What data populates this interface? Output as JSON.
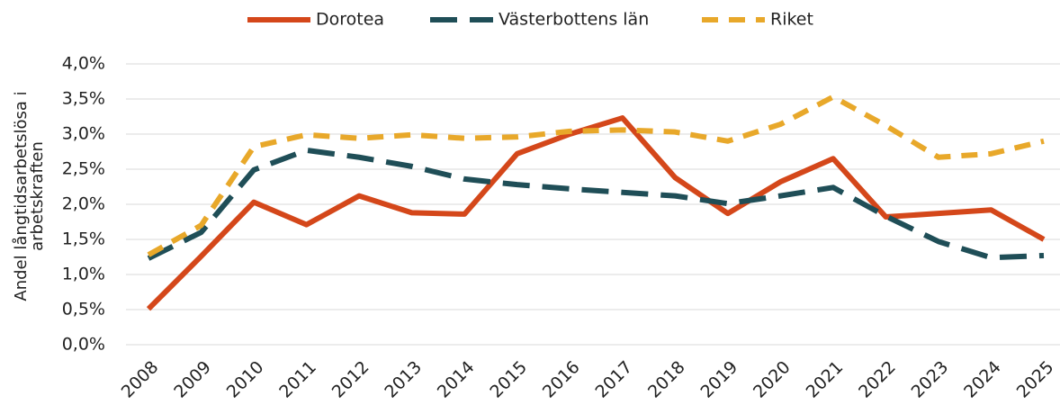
{
  "chart_data": {
    "type": "line",
    "y_label": "Andel långtidsarbetslösa i arbetskraften",
    "categories": [
      "2008",
      "2009",
      "2010",
      "2011",
      "2012",
      "2013",
      "2014",
      "2015",
      "2016",
      "2017",
      "2018",
      "2019",
      "2020",
      "2021",
      "2022",
      "2023",
      "2024",
      "2025"
    ],
    "series": [
      {
        "name": "Dorotea",
        "color": "#d4471a",
        "dash": "solid",
        "values": [
          0.51,
          1.26,
          2.03,
          1.71,
          2.12,
          1.88,
          1.86,
          2.72,
          3.0,
          3.23,
          2.38,
          1.87,
          2.32,
          2.65,
          1.82,
          1.87,
          1.92,
          1.5
        ]
      },
      {
        "name": "Västerbottens län",
        "color": "#1f4e57",
        "dash": "long",
        "values": [
          1.23,
          1.6,
          2.49,
          2.77,
          2.67,
          2.54,
          2.36,
          2.28,
          2.22,
          2.17,
          2.12,
          2.01,
          2.12,
          2.24,
          1.83,
          1.47,
          1.24,
          1.27
        ]
      },
      {
        "name": "Riket",
        "color": "#e8a82a",
        "dash": "short",
        "values": [
          1.28,
          1.7,
          2.82,
          2.99,
          2.94,
          2.99,
          2.94,
          2.96,
          3.04,
          3.06,
          3.03,
          2.9,
          3.14,
          3.53,
          3.12,
          2.67,
          2.72,
          2.9
        ]
      }
    ],
    "ylim": [
      0,
      4
    ],
    "yticks": [
      {
        "value": 0,
        "label": "0,0%"
      },
      {
        "value": 0.5,
        "label": "0,5%"
      },
      {
        "value": 1,
        "label": "1,0%"
      },
      {
        "value": 1.5,
        "label": "1,5%"
      },
      {
        "value": 2,
        "label": "2,0%"
      },
      {
        "value": 2.5,
        "label": "2,5%"
      },
      {
        "value": 3,
        "label": "3,0%"
      },
      {
        "value": 3.5,
        "label": "3,5%"
      },
      {
        "value": 4,
        "label": "4,0%"
      }
    ],
    "grid": true,
    "legend": "top"
  }
}
